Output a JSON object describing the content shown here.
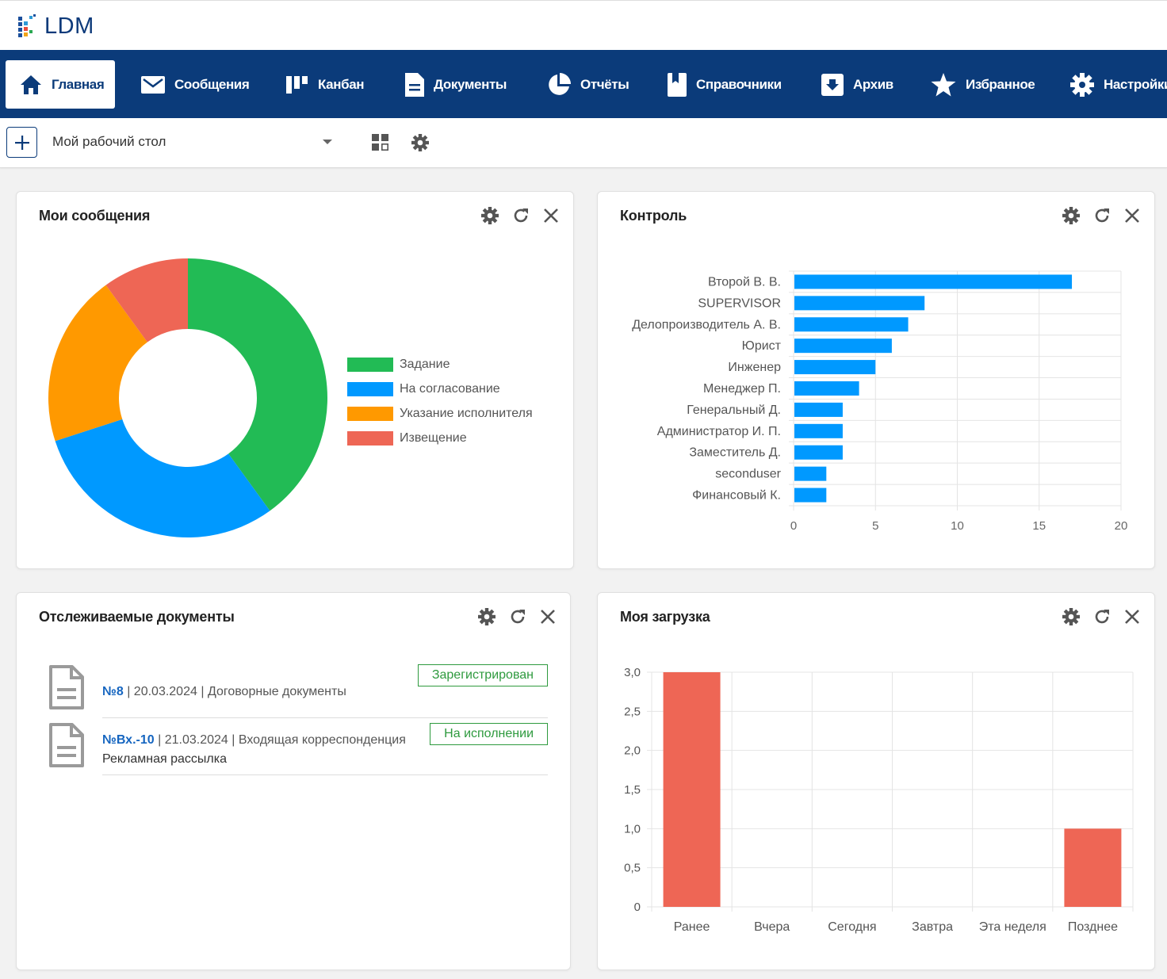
{
  "app": {
    "logo_text": "LDM"
  },
  "nav": [
    {
      "label": "Главная",
      "icon": "home-icon",
      "active": true
    },
    {
      "label": "Сообщения",
      "icon": "mail-icon"
    },
    {
      "label": "Канбан",
      "icon": "kanban-icon"
    },
    {
      "label": "Документы",
      "icon": "document-icon"
    },
    {
      "label": "Отчёты",
      "icon": "pie-chart-icon"
    },
    {
      "label": "Справочники",
      "icon": "bookmark-icon"
    },
    {
      "label": "Архив",
      "icon": "archive-icon"
    },
    {
      "label": "Избранное",
      "icon": "star-icon"
    },
    {
      "label": "Настройки",
      "icon": "gear-icon"
    }
  ],
  "toolbar": {
    "desk_name": "Мой рабочий стол"
  },
  "widgets": {
    "messages": {
      "title": "Мои сообщения",
      "chart_data": {
        "type": "pie",
        "donut": true,
        "legend_position": "right",
        "slices": [
          {
            "label": "Задание",
            "value": 40,
            "color": "#22bb55"
          },
          {
            "label": "На согласование",
            "value": 30,
            "color": "#0099ff"
          },
          {
            "label": "Указание исполнителя",
            "value": 20,
            "color": "#ff9900"
          },
          {
            "label": "Извещение",
            "value": 10,
            "color": "#ee6655"
          }
        ]
      }
    },
    "control": {
      "title": "Контроль",
      "chart_data": {
        "type": "bar",
        "orientation": "horizontal",
        "categories": [
          "Второй В. В.",
          "SUPERVISOR",
          "Делопроизводитель А. В.",
          "Юрист",
          "Инженер",
          "Менеджер П.",
          "Генеральный Д.",
          "Администратор И. П.",
          "Заместитель Д.",
          "seconduser",
          "Финансовый К."
        ],
        "values": [
          17,
          8,
          7,
          6,
          5,
          4,
          3,
          3,
          3,
          2,
          2
        ],
        "xlim": [
          0,
          20
        ],
        "ticks": [
          0,
          5,
          10,
          15,
          20
        ],
        "grid": true,
        "color": "#0099ff"
      }
    },
    "tracked": {
      "title": "Отслеживаемые документы",
      "docs": [
        {
          "num": "№8",
          "date": "20.03.2024",
          "type": "Договорные документы",
          "subtitle": "",
          "status": "Зарегистрирован"
        },
        {
          "num": "№Вх.-10",
          "date": "21.03.2024",
          "type": "Входящая корреспонденция",
          "subtitle": "Рекламная рассылка",
          "status": "На исполнении"
        }
      ]
    },
    "load": {
      "title": "Моя загрузка",
      "chart_data": {
        "type": "bar",
        "categories": [
          "Ранее",
          "Вчера",
          "Сегодня",
          "Завтра",
          "Эта неделя",
          "Позднее"
        ],
        "values": [
          3,
          0,
          0,
          0,
          0,
          1
        ],
        "ylim": [
          0,
          3
        ],
        "ticks": [
          "0",
          "0,5",
          "1,0",
          "1,5",
          "2,0",
          "2,5",
          "3,0"
        ],
        "grid": true,
        "color": "#ee6655"
      }
    }
  }
}
